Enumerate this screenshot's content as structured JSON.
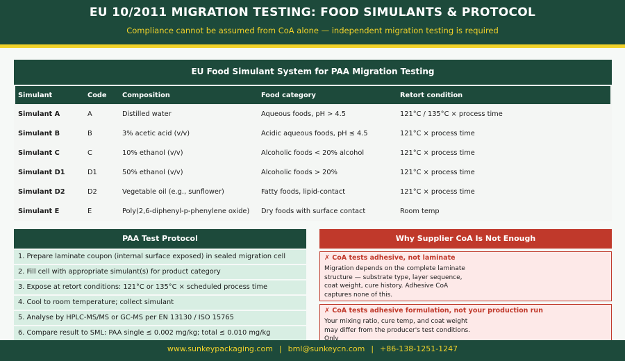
{
  "header": {
    "title": "EU 10/2011 MIGRATION TESTING: FOOD SIMULANTS & PROTOCOL",
    "subtitle": "Compliance cannot be assumed from CoA alone — independent migration testing is required"
  },
  "table": {
    "title": "EU Food Simulant System for PAA Migration Testing",
    "columns": [
      "Simulant",
      "Code",
      "Composition",
      "Food category",
      "Retort condition"
    ],
    "rows": [
      [
        "Simulant A",
        "A",
        "Distilled water",
        "Aqueous foods, pH > 4.5",
        "121°C / 135°C × process time"
      ],
      [
        "Simulant B",
        "B",
        "3% acetic acid (v/v)",
        "Acidic aqueous foods, pH ≤ 4.5",
        "121°C × process time"
      ],
      [
        "Simulant C",
        "C",
        "10% ethanol (v/v)",
        "Alcoholic foods < 20% alcohol",
        "121°C × process time"
      ],
      [
        "Simulant D1",
        "D1",
        "50% ethanol (v/v)",
        "Alcoholic foods > 20%",
        "121°C × process time"
      ],
      [
        "Simulant D2",
        "D2",
        "Vegetable oil (e.g., sunflower)",
        "Fatty foods, lipid-contact",
        "121°C × process time"
      ],
      [
        "Simulant E",
        "E",
        "Poly(2,6-diphenyl-p-phenylene oxide)",
        "Dry foods with surface contact",
        "Room temp"
      ]
    ]
  },
  "protocol": {
    "title": "PAA Test Protocol",
    "steps": [
      "1. Prepare laminate coupon (internal surface exposed) in sealed migration cell",
      "2. Fill cell with appropriate simulant(s) for product category",
      "3. Expose at retort conditions: 121°C or 135°C × scheduled process time",
      "4. Cool to room temperature; collect simulant",
      "5. Analyse by HPLC-MS/MS or GC-MS per EN 13130 / ISO 15765",
      "6. Compare result to SML: PAA single ≤ 0.002 mg/kg; total ≤ 0.010 mg/kg"
    ]
  },
  "why": {
    "title": "Why Supplier CoA Is Not Enough",
    "cards": [
      {
        "title": "CoA tests adhesive, not laminate",
        "body": "Migration depends on the complete laminate structure — substrate type, layer sequence, coat weight, cure history. Adhesive CoA captures none of this."
      },
      {
        "title": "CoA tests adhesive formulation, not your production run",
        "body": "Your mixing ratio, cure temp, and coat weight may differ from the producer's test conditions. Only"
      }
    ]
  },
  "footer": [
    "www.sunkeypackaging.com",
    "bml@sunkeycn.com",
    "+86-138-1251-1247"
  ]
}
